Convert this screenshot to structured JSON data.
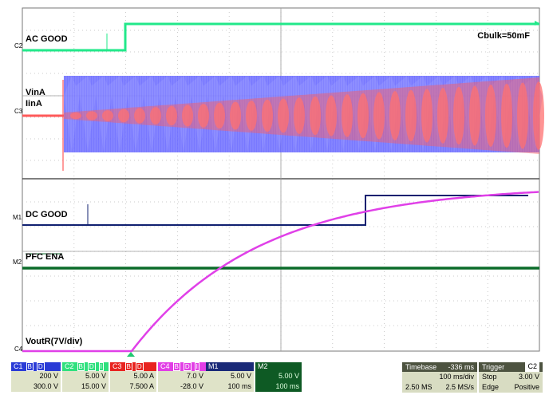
{
  "trace_labels": {
    "ac_good": "AC GOOD",
    "vin": "VinA",
    "iin": "IinA",
    "dc_good": "DC GOOD",
    "pfc_ena": "PFC ENA",
    "vout": "VoutR(7V/div)"
  },
  "markers": {
    "c2": "C2",
    "c3": "C3",
    "m1": "M1",
    "m2": "M2",
    "c4": "C4"
  },
  "annotation": "Cbulk=50mF",
  "colors": {
    "ac_good": "#22e88a",
    "vin": "#6060ff",
    "iin": "#ff5a5a",
    "dc_good": "#102070",
    "pfc_ena": "#0b6b2a",
    "vout": "#e040e8"
  },
  "channels": [
    {
      "name": "C1",
      "flags": [
        "B",
        "D"
      ],
      "v1": "200 V",
      "v2": "300.0 V"
    },
    {
      "name": "C2",
      "flags": [
        "B",
        "D",
        "I"
      ],
      "v1": "5.00 V",
      "v2": "15.00 V"
    },
    {
      "name": "C3",
      "flags": [
        "B",
        "D"
      ],
      "v1": "5.00 A",
      "v2": "7.500 A"
    },
    {
      "name": "C4",
      "flags": [
        "B",
        "D",
        "I"
      ],
      "v1": "7.0 V",
      "v2": "-28.0 V"
    },
    {
      "name": "M1",
      "flags": [],
      "v1": "5.00 V",
      "v2": "100 ms"
    },
    {
      "name": "M2",
      "flags": [],
      "v1": "5.00 V",
      "v2": "100 ms"
    }
  ],
  "timebase": {
    "label": "Timebase",
    "offset": "-336 ms",
    "per_div": "100 ms/div",
    "samples": "2.50 MS",
    "rate": "2.5 MS/s"
  },
  "trigger": {
    "label": "Trigger",
    "source": "C2",
    "mode": "Stop",
    "level": "3.00 V",
    "type": "Edge",
    "slope": "Positive"
  }
}
